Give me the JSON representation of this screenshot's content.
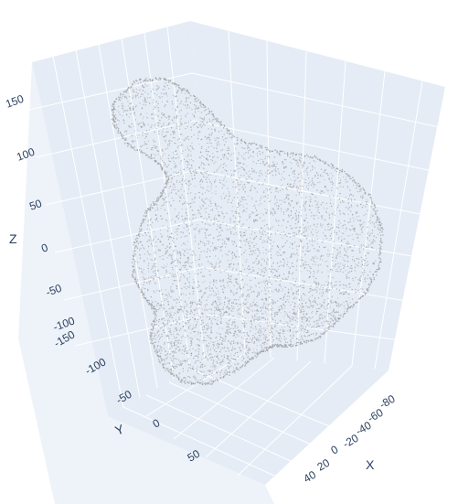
{
  "chart_data": {
    "type": "scatter3d",
    "title": "",
    "axes": {
      "x": {
        "label": "X",
        "ticks": [
          "-80",
          "-60",
          "-40",
          "-20",
          "0",
          "20",
          "40"
        ]
      },
      "y": {
        "label": "Y",
        "ticks": [
          "-150",
          "-100",
          "-50",
          "0",
          "50"
        ]
      },
      "z": {
        "label": "Z",
        "ticks": [
          "-100",
          "-50",
          "0",
          "50",
          "100",
          "150"
        ]
      }
    },
    "marker_color": "#9a9a9a",
    "background_color": "#e5ecf6",
    "gridline_color": "#ffffff",
    "point_count_estimate": 8000,
    "grid": true,
    "legend": "none"
  }
}
